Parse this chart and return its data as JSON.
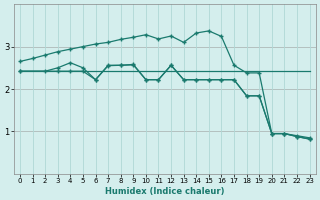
{
  "xlabel": "Humidex (Indice chaleur)",
  "bg_color": "#d4eeed",
  "grid_color": "#b0d8d6",
  "line_color": "#1a7a6e",
  "red_line_color": "#cc3333",
  "xlim": [
    -0.5,
    23.5
  ],
  "ylim": [
    0,
    4
  ],
  "yticks": [
    1,
    2,
    3
  ],
  "xticks": [
    0,
    1,
    2,
    3,
    4,
    5,
    6,
    7,
    8,
    9,
    10,
    11,
    12,
    13,
    14,
    15,
    16,
    17,
    18,
    19,
    20,
    21,
    22,
    23
  ],
  "line1_x": [
    0,
    1,
    2,
    3,
    4,
    5,
    6,
    7,
    8,
    9,
    10,
    11,
    12,
    13,
    14,
    15,
    16,
    17,
    18,
    19,
    20,
    21,
    22,
    23
  ],
  "line1_y": [
    2.65,
    2.72,
    2.8,
    2.88,
    2.94,
    3.0,
    3.06,
    3.1,
    3.17,
    3.22,
    3.28,
    3.18,
    3.25,
    3.1,
    3.32,
    3.37,
    3.24,
    2.56,
    2.38,
    2.38,
    0.95,
    0.95,
    0.9,
    0.85
  ],
  "line2_x": [
    0,
    3,
    4,
    5,
    6,
    7,
    8,
    9,
    10,
    11,
    12,
    13,
    14,
    15,
    16,
    17,
    18,
    19,
    20,
    21,
    22,
    23
  ],
  "line2_y": [
    2.42,
    2.42,
    2.42,
    2.42,
    2.22,
    2.55,
    2.56,
    2.57,
    2.22,
    2.22,
    2.56,
    2.22,
    2.22,
    2.22,
    2.22,
    2.22,
    1.84,
    1.84,
    0.95,
    0.95,
    0.88,
    0.82
  ],
  "line3_x": [
    0,
    2,
    3,
    4,
    5,
    6,
    7,
    8,
    9,
    10,
    11,
    12,
    13,
    14,
    15,
    16,
    17,
    18,
    19,
    20,
    21,
    22,
    23
  ],
  "line3_y": [
    2.42,
    2.42,
    2.5,
    2.62,
    2.5,
    2.22,
    2.56,
    2.56,
    2.58,
    2.22,
    2.22,
    2.56,
    2.22,
    2.22,
    2.22,
    2.22,
    2.22,
    1.84,
    1.84,
    0.95,
    0.95,
    0.88,
    0.82
  ],
  "line4_x": [
    0,
    23
  ],
  "line4_y": [
    2.42,
    2.42
  ],
  "marker": "+",
  "markersize": 3,
  "linewidth": 0.9
}
